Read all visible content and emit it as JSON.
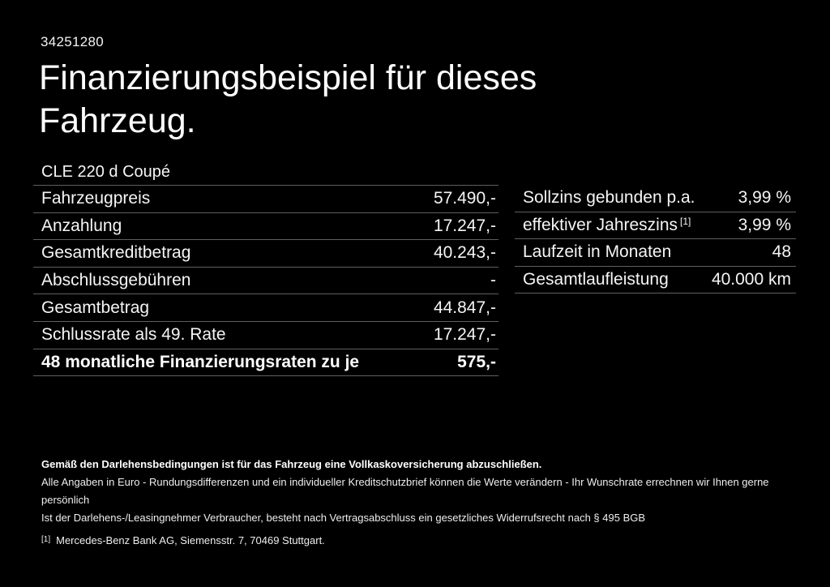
{
  "page": {
    "background": "#000000",
    "text_color": "#ffffff",
    "divider_color": "#5f5f5f"
  },
  "header": {
    "doc_number": "34251280",
    "title": "Finanzierungsbeispiel für dieses Fahrzeug.",
    "vehicle_model": "CLE 220 d Coupé"
  },
  "financing_table": {
    "rows": [
      {
        "label": "Fahrzeugpreis",
        "value": "57.490,-"
      },
      {
        "label": "Anzahlung",
        "value": "17.247,-"
      },
      {
        "label": "Gesamtkreditbetrag",
        "value": "40.243,-"
      },
      {
        "label": "Abschlussgebühren",
        "value": "-"
      },
      {
        "label": "Gesamtbetrag",
        "value": "44.847,-"
      },
      {
        "label": "Schlussrate als 49. Rate",
        "value": "17.247,-"
      },
      {
        "label": "48 monatliche Finanzierungsraten zu je",
        "value": "575,-"
      }
    ]
  },
  "conditions_table": {
    "rows": [
      {
        "label": "Sollzins gebunden p.a.",
        "value": "3,99 %"
      },
      {
        "label": "effektiver Jahreszins",
        "marker": "[1]",
        "value": "3,99 %"
      },
      {
        "label": "Laufzeit in Monaten",
        "value": "48"
      },
      {
        "label": "Gesamtlaufleistung",
        "value": "40.000 km"
      }
    ]
  },
  "footer": {
    "insurance_note": "Gemäß den Darlehensbedingungen ist für das Fahrzeug eine Vollkaskoversicherung abzuschließen.",
    "disclaimer_line1": "Alle Angaben in Euro - Rundungsdifferenzen und ein individueller Kreditschutzbrief können die Werte verändern - Ihr Wunschrate errechnen wir Ihnen gerne persönlich",
    "disclaimer_line2": "Ist der Darlehens-/Leasingnehmer Verbraucher, besteht nach Vertragsabschluss ein gesetzliches Widerrufsrecht nach § 495 BGB",
    "footnote_marker": "[1]",
    "footnote_text": "Mercedes-Benz Bank AG, Siemensstr. 7, 70469 Stuttgart."
  }
}
